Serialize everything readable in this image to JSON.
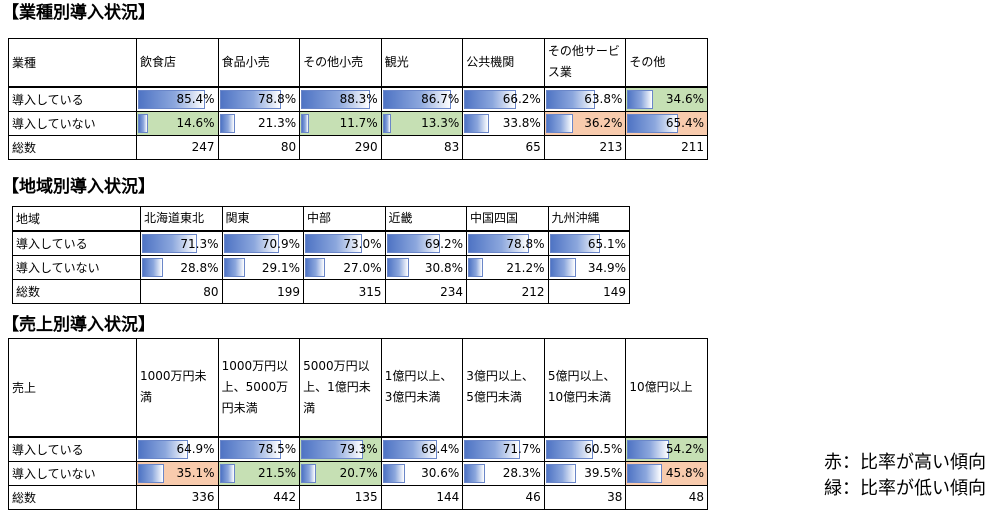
{
  "sections": [
    {
      "title": "【業種別導入状況】",
      "row_label_header": "業種",
      "columns": [
        "飲食店",
        "食品小売",
        "その他小売",
        "観光",
        "公共機関",
        "その他サービス業",
        "その他"
      ],
      "adopted_label": "導入している",
      "not_adopted_label": "導入していない",
      "total_label": "総数",
      "adopted": [
        85.4,
        78.8,
        88.3,
        86.7,
        66.2,
        63.8,
        34.6
      ],
      "adopted_text": [
        "85.4%",
        "78.8%",
        "88.3%",
        "86.7%",
        "66.2%",
        "63.8%",
        "34.6%"
      ],
      "not_adopted": [
        14.6,
        21.3,
        11.7,
        13.3,
        33.8,
        36.2,
        65.4
      ],
      "not_adopted_text": [
        "14.6%",
        "21.3%",
        "11.7%",
        "13.3%",
        "33.8%",
        "36.2%",
        "65.4%"
      ],
      "totals": [
        "247",
        "80",
        "290",
        "83",
        "65",
        "213",
        "211"
      ],
      "adopted_highlight": [
        "",
        "",
        "",
        "",
        "",
        "",
        "lo"
      ],
      "not_adopted_highlight": [
        "lo",
        "",
        "lo",
        "lo",
        "",
        "hi",
        "hi"
      ]
    },
    {
      "title": "【地域別導入状況】",
      "row_label_header": "地域",
      "columns": [
        "北海道東北",
        "関東",
        "中部",
        "近畿",
        "中国四国",
        "九州沖縄"
      ],
      "adopted_label": "導入している",
      "not_adopted_label": "導入していない",
      "total_label": "総数",
      "adopted": [
        71.3,
        70.9,
        73.0,
        69.2,
        78.8,
        65.1
      ],
      "adopted_text": [
        "71.3%",
        "70.9%",
        "73.0%",
        "69.2%",
        "78.8%",
        "65.1%"
      ],
      "not_adopted": [
        28.8,
        29.1,
        27.0,
        30.8,
        21.2,
        34.9
      ],
      "not_adopted_text": [
        "28.8%",
        "29.1%",
        "27.0%",
        "30.8%",
        "21.2%",
        "34.9%"
      ],
      "totals": [
        "80",
        "199",
        "315",
        "234",
        "212",
        "149"
      ],
      "adopted_highlight": [
        "",
        "",
        "",
        "",
        "",
        ""
      ],
      "not_adopted_highlight": [
        "",
        "",
        "",
        "",
        "",
        ""
      ]
    },
    {
      "title": "【売上別導入状況】",
      "row_label_header": "売上",
      "columns": [
        "1000万円未満",
        "1000万円以上、5000万円未満",
        "5000万円以上、1億円未満",
        "1億円以上、3億円未満",
        "3億円以上、5億円未満",
        "5億円以上、10億円未満",
        "10億円以上"
      ],
      "adopted_label": "導入している",
      "not_adopted_label": "導入していない",
      "total_label": "総数",
      "adopted": [
        64.9,
        78.5,
        79.3,
        69.4,
        71.7,
        60.5,
        54.2
      ],
      "adopted_text": [
        "64.9%",
        "78.5%",
        "79.3%",
        "69.4%",
        "71.7%",
        "60.5%",
        "54.2%"
      ],
      "not_adopted": [
        35.1,
        21.5,
        20.7,
        30.6,
        28.3,
        39.5,
        45.8
      ],
      "not_adopted_text": [
        "35.1%",
        "21.5%",
        "20.7%",
        "30.6%",
        "28.3%",
        "39.5%",
        "45.8%"
      ],
      "totals": [
        "336",
        "442",
        "135",
        "144",
        "46",
        "38",
        "48"
      ],
      "adopted_highlight": [
        "",
        "",
        "lo",
        "",
        "",
        "",
        "lo"
      ],
      "not_adopted_highlight": [
        "hi",
        "lo",
        "lo",
        "",
        "",
        "",
        "hi"
      ]
    }
  ],
  "legend": {
    "red": "赤：比率が高い傾向",
    "green": "緑：比率が低い傾向"
  },
  "colors": {
    "high": "#f8cbad",
    "low": "#c6e0b4",
    "bar": "#4f74c4"
  }
}
